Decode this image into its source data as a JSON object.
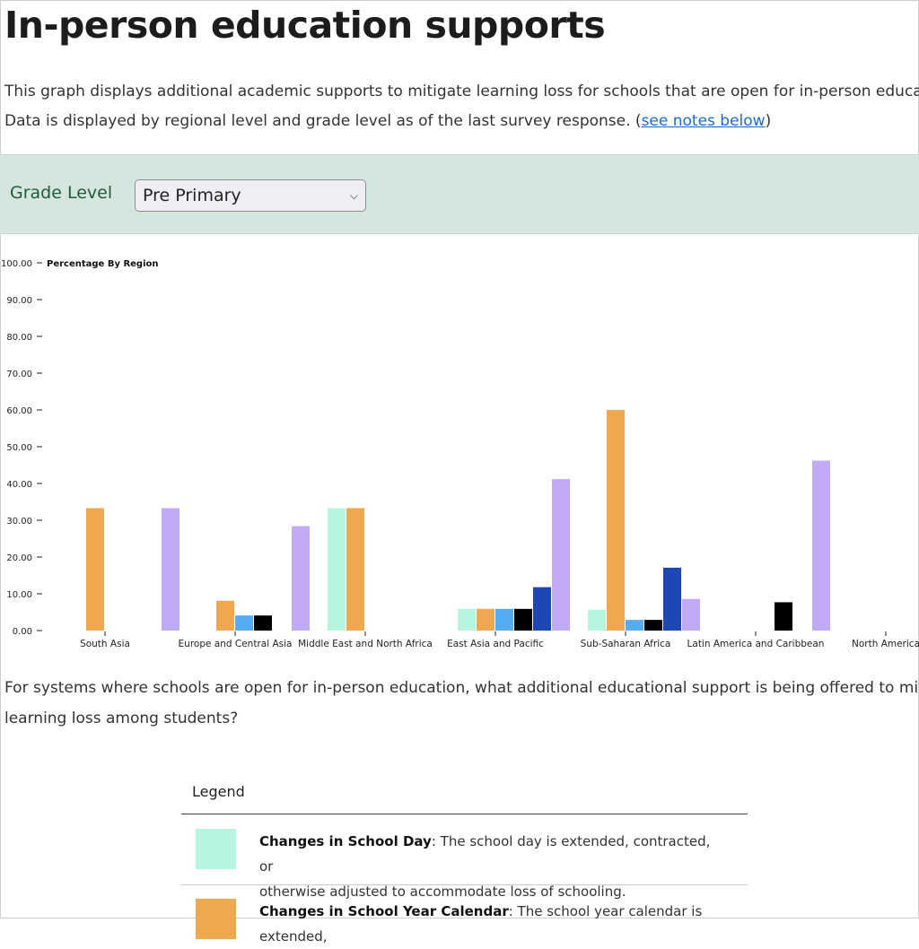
{
  "page": {
    "title": "In-person education supports",
    "intro_line1": "This graph displays additional academic supports to mitigate learning loss for schools that are open for in-person education.",
    "intro_line2_prefix": "Data is displayed by regional level and grade level as of the last survey response. (",
    "intro_link": "see notes below",
    "intro_line2_suffix": ")"
  },
  "filter": {
    "label": "Grade Level",
    "selected": "Pre Primary"
  },
  "question": {
    "line1": "For systems where schools are open for in-person education, what additional educational support is being offered to mitigate",
    "line2": "learning loss among students?"
  },
  "legend": {
    "title": "Legend",
    "items": [
      {
        "name": "Changes in School Day",
        "desc_line1": ": The school day is extended, contracted, or",
        "desc_line2": "otherwise adjusted to accommodate loss of schooling.",
        "color": "#b5f5e0"
      },
      {
        "name": "Changes in School Year Calendar",
        "desc_line1": ": The school year calendar is extended,",
        "desc_line2": "",
        "color": "#f0a84e"
      }
    ]
  },
  "chart_data": {
    "type": "bar",
    "ylabel": "Percentage By Region",
    "ylim": [
      0,
      100
    ],
    "ytick_labels": [
      "0.00",
      "10.00",
      "20.00",
      "30.00",
      "40.00",
      "50.00",
      "60.00",
      "70.00",
      "80.00",
      "90.00",
      "100.00"
    ],
    "categories": [
      "South Asia",
      "Europe and Central Asia",
      "Middle East and North Africa",
      "East Asia and Pacific",
      "Sub-Saharan Africa",
      "Latin America and Caribbean",
      "North America"
    ],
    "series": [
      {
        "color": "#b5f5e0",
        "values": [
          0,
          0,
          33.3,
          5.9,
          5.7,
          0,
          0
        ]
      },
      {
        "color": "#f0a84e",
        "values": [
          33.3,
          8.1,
          33.3,
          5.9,
          60.0,
          0,
          0
        ]
      },
      {
        "color": "#56acf0",
        "values": [
          0,
          4.1,
          0,
          5.9,
          2.9,
          0,
          0
        ]
      },
      {
        "color": "#000000",
        "values": [
          0,
          4.1,
          0,
          5.9,
          2.9,
          7.7,
          0
        ]
      },
      {
        "color": "#1f46b5",
        "values": [
          0,
          0,
          0,
          11.8,
          17.1,
          0,
          0
        ]
      },
      {
        "color": "#c3aaf7",
        "values": [
          33.3,
          28.4,
          0,
          41.2,
          8.6,
          46.2,
          0
        ]
      }
    ]
  }
}
